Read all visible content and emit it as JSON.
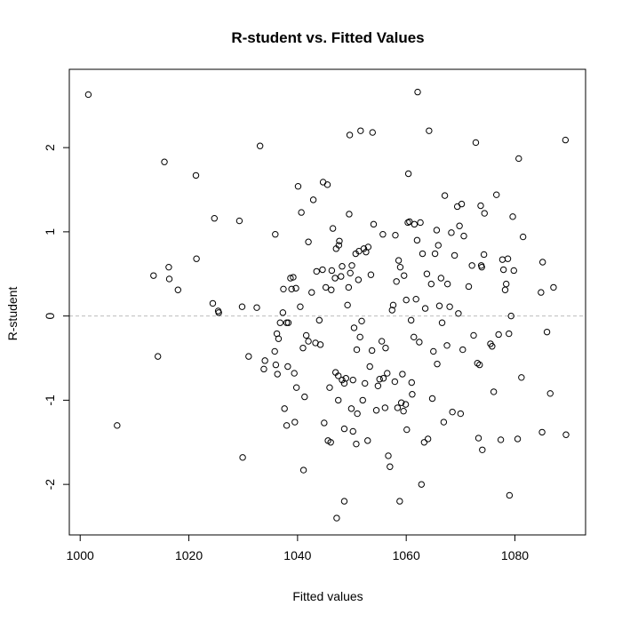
{
  "chart_data": {
    "type": "scatter",
    "title": "R-student vs. Fitted Values",
    "xlabel": "Fitted values",
    "ylabel": "R-student",
    "xlim": [
      998,
      1093
    ],
    "ylim": [
      -2.6,
      2.93
    ],
    "x_ticks": [
      1000,
      1020,
      1040,
      1060,
      1080
    ],
    "y_ticks": [
      -2,
      -1,
      0,
      1,
      2
    ],
    "reference_line": {
      "y": 0,
      "style": "dashed",
      "color": "#bdbdbd"
    },
    "marker": {
      "shape": "open-circle",
      "color": "#000000"
    },
    "grid": false,
    "points": [
      [
        1001.5,
        2.63
      ],
      [
        1006.8,
        -1.3
      ],
      [
        1013.5,
        0.48
      ],
      [
        1014.3,
        -0.48
      ],
      [
        1015.5,
        1.83
      ],
      [
        1016.3,
        0.58
      ],
      [
        1016.4,
        0.44
      ],
      [
        1018.0,
        0.31
      ],
      [
        1021.3,
        1.67
      ],
      [
        1021.4,
        0.68
      ],
      [
        1024.4,
        0.15
      ],
      [
        1024.7,
        1.16
      ],
      [
        1025.4,
        0.06
      ],
      [
        1025.5,
        0.04
      ],
      [
        1029.3,
        1.13
      ],
      [
        1029.8,
        0.11
      ],
      [
        1029.9,
        -1.68
      ],
      [
        1031.0,
        -0.48
      ],
      [
        1032.5,
        0.1
      ],
      [
        1033.1,
        2.02
      ],
      [
        1033.8,
        -0.63
      ],
      [
        1034.0,
        -0.53
      ],
      [
        1035.8,
        -0.42
      ],
      [
        1035.9,
        0.97
      ],
      [
        1036.0,
        -0.58
      ],
      [
        1036.2,
        -0.21
      ],
      [
        1036.3,
        -0.69
      ],
      [
        1036.5,
        -0.27
      ],
      [
        1036.8,
        -0.08
      ],
      [
        1037.3,
        0.04
      ],
      [
        1037.4,
        0.32
      ],
      [
        1037.6,
        -1.1
      ],
      [
        1038.0,
        -1.3
      ],
      [
        1038.0,
        -0.08
      ],
      [
        1038.2,
        -0.6
      ],
      [
        1038.3,
        -0.08
      ],
      [
        1038.7,
        0.45
      ],
      [
        1038.9,
        0.32
      ],
      [
        1039.2,
        0.46
      ],
      [
        1039.4,
        -0.68
      ],
      [
        1039.5,
        -1.26
      ],
      [
        1039.7,
        0.33
      ],
      [
        1039.8,
        -0.85
      ],
      [
        1040.1,
        1.54
      ],
      [
        1040.5,
        0.11
      ],
      [
        1040.7,
        1.23
      ],
      [
        1041.0,
        -0.38
      ],
      [
        1041.1,
        -1.83
      ],
      [
        1041.3,
        -0.96
      ],
      [
        1041.6,
        -0.23
      ],
      [
        1042.0,
        0.88
      ],
      [
        1042.0,
        -0.3
      ],
      [
        1042.6,
        0.28
      ],
      [
        1042.9,
        1.38
      ],
      [
        1043.3,
        -0.32
      ],
      [
        1043.5,
        0.53
      ],
      [
        1044.0,
        -0.05
      ],
      [
        1044.2,
        -0.34
      ],
      [
        1044.6,
        0.55
      ],
      [
        1044.7,
        1.59
      ],
      [
        1044.9,
        -1.27
      ],
      [
        1045.2,
        0.34
      ],
      [
        1045.5,
        1.56
      ],
      [
        1045.6,
        -1.48
      ],
      [
        1045.9,
        -0.85
      ],
      [
        1046.1,
        -1.5
      ],
      [
        1046.2,
        0.31
      ],
      [
        1046.3,
        0.54
      ],
      [
        1046.5,
        1.04
      ],
      [
        1046.9,
        0.45
      ],
      [
        1047.0,
        -0.67
      ],
      [
        1047.1,
        0.8
      ],
      [
        1047.2,
        -2.4
      ],
      [
        1047.5,
        -1.0
      ],
      [
        1047.5,
        -0.71
      ],
      [
        1047.6,
        0.84
      ],
      [
        1047.7,
        0.89
      ],
      [
        1048.0,
        0.47
      ],
      [
        1048.2,
        0.59
      ],
      [
        1048.2,
        -0.76
      ],
      [
        1048.6,
        -0.8
      ],
      [
        1048.6,
        -1.34
      ],
      [
        1048.6,
        -2.2
      ],
      [
        1048.9,
        -0.74
      ],
      [
        1049.2,
        0.13
      ],
      [
        1049.4,
        0.34
      ],
      [
        1049.5,
        1.21
      ],
      [
        1049.6,
        2.15
      ],
      [
        1049.7,
        0.51
      ],
      [
        1049.9,
        -1.1
      ],
      [
        1050.0,
        0.6
      ],
      [
        1050.2,
        -1.37
      ],
      [
        1050.2,
        -0.76
      ],
      [
        1050.4,
        -0.14
      ],
      [
        1050.7,
        0.74
      ],
      [
        1050.8,
        -1.52
      ],
      [
        1050.9,
        -0.4
      ],
      [
        1051.0,
        -1.16
      ],
      [
        1051.2,
        0.43
      ],
      [
        1051.3,
        0.77
      ],
      [
        1051.5,
        -0.25
      ],
      [
        1051.6,
        2.2
      ],
      [
        1051.8,
        -0.06
      ],
      [
        1052.0,
        -1.0
      ],
      [
        1052.2,
        0.8
      ],
      [
        1052.4,
        -0.8
      ],
      [
        1052.6,
        0.76
      ],
      [
        1052.9,
        -1.48
      ],
      [
        1053.0,
        0.82
      ],
      [
        1053.3,
        -0.6
      ],
      [
        1053.5,
        0.49
      ],
      [
        1053.7,
        -0.41
      ],
      [
        1053.8,
        2.18
      ],
      [
        1054.0,
        1.09
      ],
      [
        1054.5,
        -1.12
      ],
      [
        1054.8,
        -0.83
      ],
      [
        1055.1,
        -0.75
      ],
      [
        1055.5,
        -0.3
      ],
      [
        1055.7,
        0.97
      ],
      [
        1055.8,
        -0.74
      ],
      [
        1056.1,
        -1.09
      ],
      [
        1056.2,
        -0.38
      ],
      [
        1056.5,
        -0.68
      ],
      [
        1056.7,
        -1.66
      ],
      [
        1057.0,
        -1.79
      ],
      [
        1057.4,
        0.07
      ],
      [
        1057.6,
        0.13
      ],
      [
        1057.9,
        -0.78
      ],
      [
        1058.0,
        0.96
      ],
      [
        1058.2,
        0.41
      ],
      [
        1058.4,
        -1.09
      ],
      [
        1058.6,
        0.66
      ],
      [
        1058.8,
        -2.2
      ],
      [
        1058.9,
        0.58
      ],
      [
        1059.1,
        -1.03
      ],
      [
        1059.3,
        -0.69
      ],
      [
        1059.5,
        -1.13
      ],
      [
        1059.6,
        0.48
      ],
      [
        1059.9,
        -1.05
      ],
      [
        1060.0,
        0.19
      ],
      [
        1060.1,
        -1.35
      ],
      [
        1060.3,
        1.11
      ],
      [
        1060.4,
        1.69
      ],
      [
        1060.6,
        1.12
      ],
      [
        1060.9,
        -0.05
      ],
      [
        1061.0,
        -0.79
      ],
      [
        1061.1,
        -0.93
      ],
      [
        1061.4,
        -0.25
      ],
      [
        1061.5,
        1.09
      ],
      [
        1061.8,
        0.2
      ],
      [
        1062.0,
        0.9
      ],
      [
        1062.1,
        2.66
      ],
      [
        1062.4,
        -0.31
      ],
      [
        1062.6,
        1.11
      ],
      [
        1062.8,
        -2.0
      ],
      [
        1063.0,
        0.74
      ],
      [
        1063.3,
        -1.5
      ],
      [
        1063.5,
        0.09
      ],
      [
        1063.8,
        0.5
      ],
      [
        1064.0,
        -1.46
      ],
      [
        1064.2,
        2.2
      ],
      [
        1064.6,
        0.38
      ],
      [
        1064.8,
        -0.98
      ],
      [
        1065.0,
        -0.42
      ],
      [
        1065.3,
        0.74
      ],
      [
        1065.6,
        1.02
      ],
      [
        1065.7,
        -0.57
      ],
      [
        1065.9,
        0.84
      ],
      [
        1066.1,
        0.12
      ],
      [
        1066.4,
        0.45
      ],
      [
        1066.6,
        -0.08
      ],
      [
        1066.9,
        -1.26
      ],
      [
        1067.1,
        1.43
      ],
      [
        1067.5,
        -0.35
      ],
      [
        1067.6,
        0.38
      ],
      [
        1068.0,
        0.11
      ],
      [
        1068.3,
        0.99
      ],
      [
        1068.5,
        -1.14
      ],
      [
        1068.9,
        0.72
      ],
      [
        1069.4,
        1.3
      ],
      [
        1069.6,
        0.03
      ],
      [
        1069.8,
        1.07
      ],
      [
        1070.0,
        -1.16
      ],
      [
        1070.2,
        1.33
      ],
      [
        1070.4,
        -0.4
      ],
      [
        1070.6,
        0.95
      ],
      [
        1071.5,
        0.35
      ],
      [
        1072.1,
        0.6
      ],
      [
        1072.4,
        -0.23
      ],
      [
        1072.8,
        2.06
      ],
      [
        1073.1,
        -0.56
      ],
      [
        1073.3,
        -1.45
      ],
      [
        1073.5,
        -0.58
      ],
      [
        1073.7,
        1.31
      ],
      [
        1073.8,
        0.6
      ],
      [
        1073.9,
        0.58
      ],
      [
        1074.0,
        -1.59
      ],
      [
        1074.3,
        0.73
      ],
      [
        1074.4,
        1.22
      ],
      [
        1075.5,
        -0.33
      ],
      [
        1075.8,
        -0.36
      ],
      [
        1076.1,
        -0.9
      ],
      [
        1076.6,
        1.44
      ],
      [
        1077.0,
        -0.22
      ],
      [
        1077.4,
        -1.47
      ],
      [
        1077.7,
        0.67
      ],
      [
        1077.9,
        0.55
      ],
      [
        1078.2,
        0.31
      ],
      [
        1078.4,
        0.38
      ],
      [
        1078.7,
        0.68
      ],
      [
        1078.9,
        -0.21
      ],
      [
        1079.0,
        -2.13
      ],
      [
        1079.3,
        0.0
      ],
      [
        1079.6,
        1.18
      ],
      [
        1079.8,
        0.54
      ],
      [
        1080.5,
        -1.46
      ],
      [
        1080.7,
        1.87
      ],
      [
        1081.2,
        -0.73
      ],
      [
        1081.5,
        0.94
      ],
      [
        1084.8,
        0.28
      ],
      [
        1085.0,
        -1.38
      ],
      [
        1085.1,
        0.64
      ],
      [
        1085.9,
        -0.19
      ],
      [
        1086.5,
        -0.92
      ],
      [
        1087.1,
        0.34
      ],
      [
        1089.3,
        2.09
      ],
      [
        1089.4,
        -1.41
      ]
    ]
  }
}
